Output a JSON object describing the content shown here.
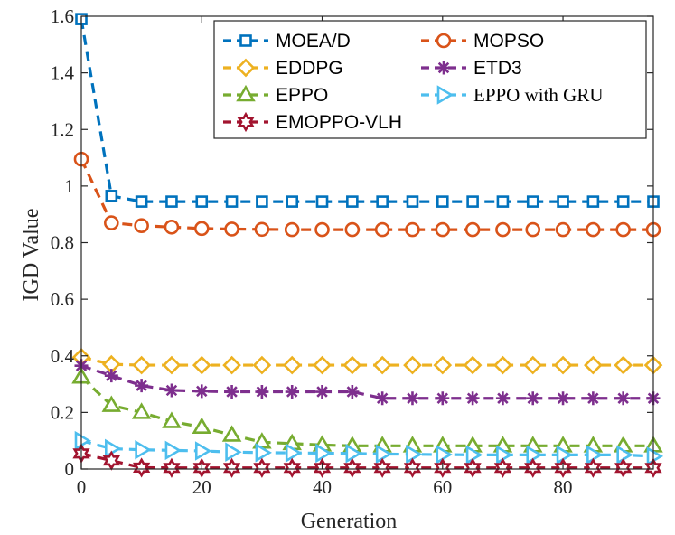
{
  "chart_data": {
    "type": "line",
    "xlabel": "Generation",
    "ylabel": "IGD Value",
    "xlim": [
      0,
      95
    ],
    "ylim": [
      0,
      1.6
    ],
    "xticks": [
      0,
      20,
      40,
      60,
      80
    ],
    "xtick_labels": [
      "0",
      "20",
      "40",
      "60",
      "80"
    ],
    "yticks": [
      0,
      0.2,
      0.4,
      0.6,
      0.8,
      1,
      1.2,
      1.4,
      1.6
    ],
    "ytick_labels": [
      "0",
      "0.2",
      "0.4",
      "0.6",
      "0.8",
      "1",
      "1.2",
      "1.4",
      "1.6"
    ],
    "grid": false,
    "legend_position": "top-right",
    "x": [
      0,
      5,
      10,
      15,
      20,
      25,
      30,
      35,
      40,
      45,
      50,
      55,
      60,
      65,
      70,
      75,
      80,
      85,
      90,
      95
    ],
    "series": [
      {
        "name": "MOEA/D",
        "color": "#0072BD",
        "marker": "square",
        "values": [
          1.59,
          0.965,
          0.945,
          0.945,
          0.945,
          0.945,
          0.945,
          0.945,
          0.945,
          0.945,
          0.945,
          0.945,
          0.945,
          0.945,
          0.945,
          0.945,
          0.945,
          0.945,
          0.945,
          0.945
        ]
      },
      {
        "name": "MOPSO",
        "color": "#D95319",
        "marker": "circle",
        "values": [
          1.095,
          0.87,
          0.86,
          0.855,
          0.85,
          0.848,
          0.847,
          0.846,
          0.846,
          0.846,
          0.846,
          0.846,
          0.846,
          0.846,
          0.846,
          0.846,
          0.846,
          0.846,
          0.846,
          0.846
        ]
      },
      {
        "name": "EDDPG",
        "color": "#EDB120",
        "marker": "diamond",
        "values": [
          0.395,
          0.37,
          0.367,
          0.367,
          0.367,
          0.367,
          0.367,
          0.367,
          0.367,
          0.367,
          0.367,
          0.367,
          0.367,
          0.367,
          0.367,
          0.367,
          0.367,
          0.367,
          0.367,
          0.367
        ]
      },
      {
        "name": "ETD3",
        "color": "#7E2F8E",
        "marker": "asterisk",
        "values": [
          0.365,
          0.33,
          0.295,
          0.278,
          0.275,
          0.273,
          0.273,
          0.273,
          0.273,
          0.273,
          0.25,
          0.25,
          0.25,
          0.25,
          0.25,
          0.25,
          0.25,
          0.25,
          0.25,
          0.25
        ]
      },
      {
        "name": "EPPO",
        "color": "#77AC30",
        "marker": "triangle-up",
        "values": [
          0.325,
          0.225,
          0.2,
          0.168,
          0.148,
          0.12,
          0.095,
          0.09,
          0.085,
          0.082,
          0.082,
          0.082,
          0.082,
          0.082,
          0.082,
          0.082,
          0.082,
          0.082,
          0.082,
          0.082
        ]
      },
      {
        "name": "EPPO with GRU",
        "color": "#4DBEEE",
        "marker": "triangle-right",
        "values": [
          0.1,
          0.072,
          0.068,
          0.066,
          0.064,
          0.06,
          0.058,
          0.057,
          0.056,
          0.055,
          0.053,
          0.052,
          0.051,
          0.05,
          0.05,
          0.05,
          0.05,
          0.05,
          0.05,
          0.045
        ]
      },
      {
        "name": "EMOPPO-VLH",
        "color": "#A2142F",
        "marker": "hexagram",
        "values": [
          0.055,
          0.03,
          0.005,
          0.004,
          0.004,
          0.004,
          0.004,
          0.004,
          0.004,
          0.004,
          0.004,
          0.004,
          0.004,
          0.004,
          0.004,
          0.004,
          0.004,
          0.004,
          0.004,
          0.004
        ]
      }
    ],
    "legend_order": [
      "MOEA/D",
      "MOPSO",
      "EDDPG",
      "ETD3",
      "EPPO",
      "EPPO with GRU",
      "EMOPPO-VLH"
    ]
  }
}
